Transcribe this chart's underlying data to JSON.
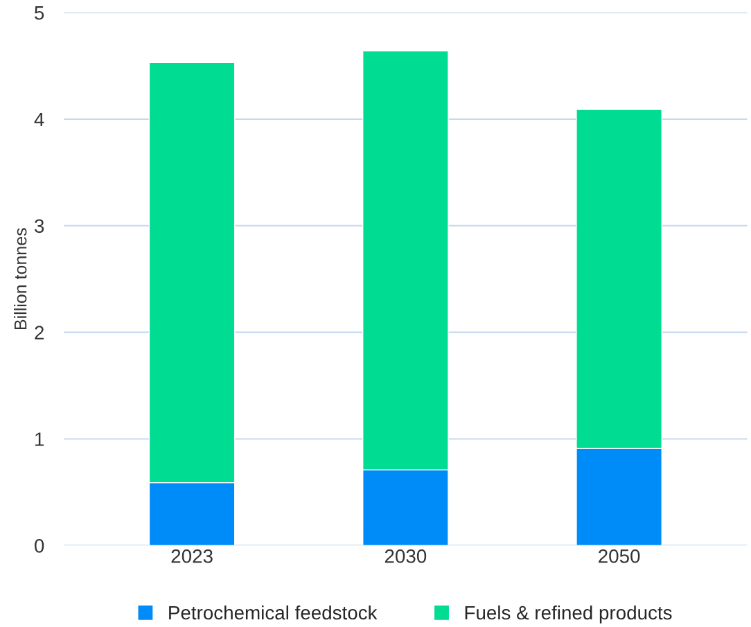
{
  "chart_data": {
    "type": "bar",
    "ylabel": "Billion tonnes",
    "categories": [
      "2023",
      "2030",
      "2050"
    ],
    "stacked": true,
    "series": [
      {
        "name": "Petrochemical feedstock",
        "color": "#008cf8",
        "values": [
          0.59,
          0.71,
          0.91
        ]
      },
      {
        "name": "Fuels & refined products",
        "color": "#00dc91",
        "values": [
          3.94,
          3.93,
          3.18
        ]
      }
    ],
    "ylim": [
      0,
      5
    ],
    "yticks": [
      0,
      1,
      2,
      3,
      4,
      5
    ],
    "grid": "y",
    "legend": "bottom"
  }
}
